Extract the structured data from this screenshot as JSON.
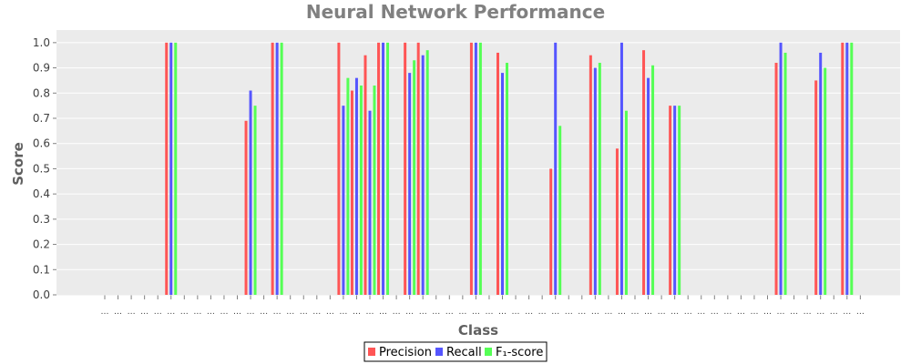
{
  "chart_data": {
    "type": "bar",
    "title": "Neural Network Performance",
    "xlabel": "Class",
    "ylabel": "Score",
    "ylim": [
      0,
      1.05
    ],
    "yticks": [
      0.0,
      0.1,
      0.2,
      0.3,
      0.4,
      0.5,
      0.6,
      0.7,
      0.8,
      0.9,
      1.0
    ],
    "ytick_labels": [
      "0.0",
      "0.1",
      "0.2",
      "0.3",
      "0.4",
      "0.5",
      "0.6",
      "0.7",
      "0.8",
      "0.9",
      "1.0"
    ],
    "grid": true,
    "legend": "bottom",
    "categories": [
      "…",
      "…",
      "…",
      "…",
      "…",
      "…",
      "…",
      "…",
      "…",
      "…",
      "…",
      "…",
      "…",
      "…",
      "…",
      "…",
      "…",
      "…",
      "…",
      "…",
      "…",
      "…",
      "…",
      "…",
      "…",
      "…",
      "…",
      "…",
      "…",
      "…",
      "…",
      "…",
      "…",
      "…",
      "…",
      "…",
      "…",
      "…",
      "…",
      "…",
      "…",
      "…",
      "…",
      "…",
      "…",
      "…",
      "…",
      "…",
      "…",
      "…",
      "…",
      "…",
      "…",
      "…",
      "…",
      "…",
      "…",
      "…"
    ],
    "series": [
      {
        "name": "Precision",
        "color": "#ff5555",
        "values": [
          0,
          0,
          0,
          0,
          0,
          1.0,
          0,
          0,
          0,
          0,
          0,
          0.69,
          0,
          1.0,
          0,
          0,
          0,
          0,
          1.0,
          0.81,
          0.95,
          1.0,
          0,
          1.0,
          1.0,
          0,
          0,
          0,
          1.0,
          0,
          0.96,
          0,
          0,
          0,
          0.5,
          0,
          0,
          0.95,
          0,
          0.58,
          0,
          0.97,
          0,
          0.75,
          0,
          0,
          0,
          0,
          0,
          0,
          0,
          0.92,
          0,
          0,
          0.85,
          0,
          1.0,
          0
        ]
      },
      {
        "name": "Recall",
        "color": "#5555ff",
        "values": [
          0,
          0,
          0,
          0,
          0,
          1.0,
          0,
          0,
          0,
          0,
          0,
          0.81,
          0,
          1.0,
          0,
          0,
          0,
          0,
          0.75,
          0.86,
          0.73,
          1.0,
          0,
          0.88,
          0.95,
          0,
          0,
          0,
          1.0,
          0,
          0.88,
          0,
          0,
          0,
          1.0,
          0,
          0,
          0.9,
          0,
          1.0,
          0,
          0.86,
          0,
          0.75,
          0,
          0,
          0,
          0,
          0,
          0,
          0,
          1.0,
          0,
          0,
          0.96,
          0,
          1.0,
          0
        ]
      },
      {
        "name": "F₁-score",
        "color": "#55ff55",
        "values": [
          0,
          0,
          0,
          0,
          0,
          1.0,
          0,
          0,
          0,
          0,
          0,
          0.75,
          0,
          1.0,
          0,
          0,
          0,
          0,
          0.86,
          0.83,
          0.83,
          1.0,
          0,
          0.93,
          0.97,
          0,
          0,
          0,
          1.0,
          0,
          0.92,
          0,
          0,
          0,
          0.67,
          0,
          0,
          0.92,
          0,
          0.73,
          0,
          0.91,
          0,
          0.75,
          0,
          0,
          0,
          0,
          0,
          0,
          0,
          0.96,
          0,
          0,
          0.9,
          0,
          1.0,
          0
        ]
      }
    ]
  }
}
